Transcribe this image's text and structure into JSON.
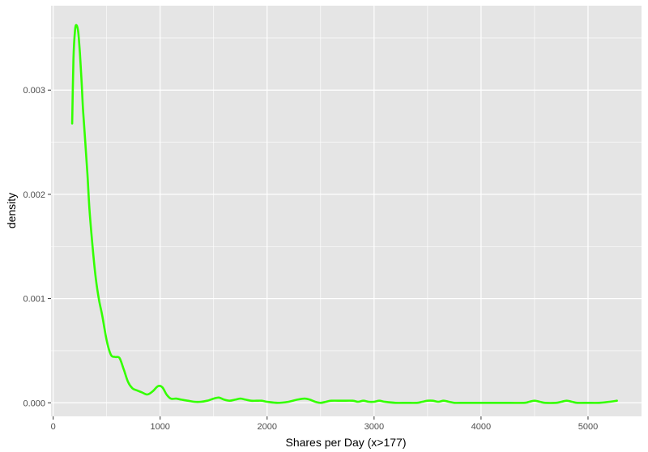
{
  "chart_data": {
    "type": "line",
    "title": "",
    "xlabel": "Shares per Day (x>177)",
    "ylabel": "density",
    "xlim": [
      -20,
      5500
    ],
    "ylim": [
      -0.00013,
      0.00381
    ],
    "x_ticks": [
      0,
      1000,
      2000,
      3000,
      4000,
      5000
    ],
    "x_minor_ticks": [
      500,
      1500,
      2500,
      3500,
      4500
    ],
    "y_ticks": [
      0.0,
      0.001,
      0.002,
      0.003
    ],
    "y_minor_ticks": [
      0.0005,
      0.0015,
      0.0025,
      0.0035
    ],
    "x_tick_labels": [
      "0",
      "1000",
      "2000",
      "3000",
      "4000",
      "5000"
    ],
    "y_tick_labels": [
      "0.000",
      "0.001",
      "0.002",
      "0.003"
    ],
    "grid": true,
    "legend": "none",
    "colors": {
      "panel": "#e5e5e5",
      "grid": "#ffffff",
      "line": "#33ff00"
    },
    "series": [
      {
        "x": [
          178,
          190,
          205,
          220,
          235,
          250,
          265,
          280,
          300,
          320,
          340,
          370,
          400,
          430,
          460,
          500,
          540,
          580,
          620,
          660,
          700,
          740,
          780,
          830,
          880,
          930,
          980,
          1020,
          1060,
          1100,
          1150,
          1200,
          1260,
          1320,
          1380,
          1440,
          1500,
          1550,
          1600,
          1650,
          1700,
          1750,
          1800,
          1850,
          1900,
          1950,
          2000,
          2100,
          2200,
          2280,
          2350,
          2400,
          2450,
          2500,
          2550,
          2600,
          2700,
          2800,
          2850,
          2900,
          2950,
          3000,
          3050,
          3100,
          3200,
          3300,
          3400,
          3450,
          3500,
          3550,
          3600,
          3650,
          3700,
          3750,
          3800,
          4000,
          4200,
          4400,
          4450,
          4500,
          4550,
          4600,
          4700,
          4750,
          4800,
          4850,
          4900,
          5000,
          5100,
          5200,
          5270
        ],
        "y": [
          0.00268,
          0.0033,
          0.00358,
          0.00362,
          0.00355,
          0.00335,
          0.0031,
          0.0028,
          0.0025,
          0.0022,
          0.00185,
          0.00148,
          0.00118,
          0.00098,
          0.00083,
          0.0006,
          0.00046,
          0.00044,
          0.00043,
          0.00032,
          0.0002,
          0.00014,
          0.00012,
          0.0001,
          8e-05,
          0.00011,
          0.00016,
          0.00015,
          8e-05,
          4e-05,
          4e-05,
          3e-05,
          2e-05,
          1e-05,
          1e-05,
          2e-05,
          4e-05,
          5e-05,
          3e-05,
          2e-05,
          3e-05,
          4e-05,
          3e-05,
          2e-05,
          2e-05,
          2e-05,
          1e-05,
          0.0,
          1e-05,
          3e-05,
          4e-05,
          3e-05,
          1e-05,
          0.0,
          1e-05,
          2e-05,
          2e-05,
          2e-05,
          1e-05,
          2e-05,
          1e-05,
          1e-05,
          2e-05,
          1e-05,
          0.0,
          0.0,
          0.0,
          1e-05,
          2e-05,
          2e-05,
          1e-05,
          2e-05,
          1e-05,
          0.0,
          0.0,
          0.0,
          0.0,
          0.0,
          1e-05,
          2e-05,
          1e-05,
          0.0,
          0.0,
          1e-05,
          2e-05,
          1e-05,
          0.0,
          0.0,
          0.0,
          1e-05,
          2e-05
        ]
      }
    ]
  }
}
